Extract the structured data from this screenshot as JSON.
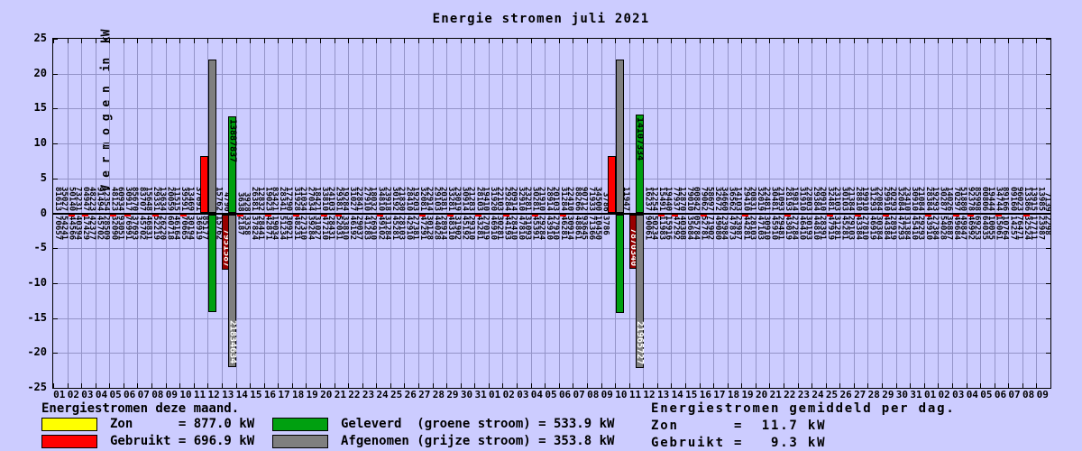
{
  "title": "Energie stromen juli 2021",
  "y_axis": {
    "label": "V e r m o g e n  in  kW",
    "ticks": [
      "25",
      "20",
      "15",
      "10",
      "5",
      "0",
      "-5",
      "-10",
      "-15",
      "-20",
      "-25"
    ]
  },
  "colors": {
    "background": "#ccccff",
    "grid": "#9494c8",
    "red": "#ff0000",
    "dark_red": "#990000",
    "green": "#00a010",
    "gray": "#7f7f7f",
    "yellow": "#ffff00",
    "text": "#000000"
  },
  "legend_left": {
    "header": "Energiestromen deze maand.",
    "items": [
      {
        "swatch": "yellow",
        "text": "Zon      = 877.0 kW"
      },
      {
        "swatch": "red",
        "text": "Gebruikt = 696.9 kW"
      },
      {
        "swatch": "green",
        "text": "Geleverd  (groene stroom) = 533.9 kW"
      },
      {
        "swatch": "gray",
        "text": "Afgenomen (grijze stroom) = 353.8 kW"
      }
    ]
  },
  "legend_right": {
    "header": "Energiestromen gemiddeld per dag.",
    "lines": [
      "Zon      =  11.7 kW",
      "Gebruikt =   9.3 kW"
    ]
  },
  "chart_data": {
    "type": "bar",
    "title": "Energie stromen juli 2021",
    "ylabel": "Vermogen in kW",
    "ylim": [
      -25,
      25
    ],
    "grid": true,
    "x_labels_cycles": "days 01-31, then 01-31, then 01-09 (71 columns)",
    "totals_kw": {
      "zon": 877.0,
      "gebruikt": 696.9,
      "geleverd": 533.9,
      "afgenomen": 353.8
    },
    "daily_average_kw": {
      "zon": 11.7,
      "gebruikt": 9.3
    },
    "bars": [
      {
        "cell": 11,
        "slot": "R",
        "dir": "up",
        "color": "red",
        "value": 8.2,
        "label": "",
        "label_color": ""
      },
      {
        "cell": 12,
        "slot": "L",
        "dir": "up",
        "color": "gray",
        "value": 21.97,
        "label": "",
        "label_color": ""
      },
      {
        "cell": 12,
        "slot": "L",
        "dir": "down",
        "color": "green",
        "value": 14.0,
        "label": "",
        "label_color": ""
      },
      {
        "cell": 13,
        "slot": "L",
        "dir": "down",
        "color": "dark_red",
        "value": 7.951587,
        "label": "7951587",
        "label_color": "#ffffff"
      },
      {
        "cell": 13,
        "slot": "R",
        "dir": "up",
        "color": "green",
        "value": 13.887837,
        "label": "13887837",
        "label_color": "#000000"
      },
      {
        "cell": 13,
        "slot": "R",
        "dir": "down",
        "color": "gray",
        "value": 21.834634,
        "label": "21834634",
        "label_color": "#ffffff"
      },
      {
        "cell": 40,
        "slot": "R",
        "dir": "up",
        "color": "red",
        "value": 8.2,
        "label": "",
        "label_color": ""
      },
      {
        "cell": 41,
        "slot": "L",
        "dir": "up",
        "color": "gray",
        "value": 21.97,
        "label": "",
        "label_color": ""
      },
      {
        "cell": 41,
        "slot": "L",
        "dir": "down",
        "color": "green",
        "value": 14.1,
        "label": "",
        "label_color": ""
      },
      {
        "cell": 42,
        "slot": "L",
        "dir": "down",
        "color": "dark_red",
        "value": 7.87034,
        "label": "7870340",
        "label_color": "#ffffff"
      },
      {
        "cell": 42,
        "slot": "R",
        "dir": "up",
        "color": "green",
        "value": 14.107334,
        "label": "14107334",
        "label_color": "#000000"
      },
      {
        "cell": 42,
        "slot": "R",
        "dir": "down",
        "color": "gray",
        "value": 21.965727,
        "label": "21965727",
        "label_color": "#ffffff"
      }
    ],
    "columns": [
      {
        "d": "01",
        "u": [
          "81613",
          "35027"
        ],
        "l": [
          "70657",
          "54241"
        ],
        "r": 0
      },
      {
        "d": "02",
        "u": [
          "50140",
          "73231"
        ],
        "l": [
          "44566",
          "40394"
        ],
        "r": 1
      },
      {
        "d": "03",
        "u": [
          "04947",
          "48223"
        ],
        "l": [
          "17429",
          "42377"
        ],
        "r": 1
      },
      {
        "d": "04",
        "u": [
          "91494",
          "12354"
        ],
        "l": [
          "45702",
          "28509"
        ],
        "r": 0
      },
      {
        "d": "05",
        "u": [
          "48123",
          "60934"
        ],
        "l": [
          "32090",
          "93051"
        ],
        "r": 1
      },
      {
        "d": "06",
        "u": [
          "30917",
          "85670"
        ],
        "l": [
          "76991",
          "37693"
        ],
        "r": 1
      },
      {
        "d": "07",
        "u": [
          "83707",
          "15648"
        ],
        "l": [
          "45702",
          "46831"
        ],
        "r": 0
      },
      {
        "d": "08",
        "u": [
          "29331",
          "13634"
        ],
        "l": [
          "52219",
          "26220"
        ],
        "r": 1
      },
      {
        "d": "09",
        "u": [
          "20059",
          "11515"
        ],
        "l": [
          "60718",
          "46164"
        ],
        "r": 0
      },
      {
        "d": "10",
        "u": [
          "39591",
          "13469"
        ],
        "l": [
          "70665",
          "30194"
        ],
        "r": 1
      },
      {
        "d": "11",
        "u": [
          "37691",
          "12609"
        ],
        "l": [
          "36919",
          "85177"
        ],
        "r": 0
      },
      {
        "d": "12",
        "u": [
          "",
          "15762"
        ],
        "l": [
          "",
          "15762"
        ],
        "r": 0
      },
      {
        "d": "13",
        "u": [
          "4790",
          ""
        ],
        "l": [
          "",
          ""
        ],
        "r": 0
      },
      {
        "d": "14",
        "u": [
          "3638",
          "3928"
        ],
        "l": [
          "2187",
          "3358"
        ],
        "r": 1
      },
      {
        "d": "15",
        "u": [
          "26381",
          "12832"
        ],
        "l": [
          "37824",
          "28441"
        ],
        "r": 0
      },
      {
        "d": "16",
        "u": [
          "19023",
          "83421"
        ],
        "l": [
          "42871",
          "19034"
        ],
        "r": 1
      },
      {
        "d": "17",
        "u": [
          "28341",
          "17290"
        ],
        "l": [
          "51234",
          "30921"
        ],
        "r": 0
      },
      {
        "d": "18",
        "u": [
          "31928",
          "21034"
        ],
        "l": [
          "48231",
          "27310"
        ],
        "r": 1
      },
      {
        "d": "19",
        "u": [
          "27034",
          "18421"
        ],
        "l": [
          "39284",
          "31027"
        ],
        "r": 0
      },
      {
        "d": "20",
        "u": [
          "33810",
          "24103"
        ],
        "l": [
          "47210",
          "28431"
        ],
        "r": 1
      },
      {
        "d": "21",
        "u": [
          "29381",
          "19284"
        ],
        "l": [
          "52031",
          "33810"
        ],
        "r": 1
      },
      {
        "d": "22",
        "u": [
          "31027",
          "22841"
        ],
        "l": [
          "46192",
          "29037"
        ],
        "r": 0
      },
      {
        "d": "23",
        "u": [
          "27910",
          "18032"
        ],
        "l": [
          "41283",
          "26910"
        ],
        "r": 0
      },
      {
        "d": "24",
        "u": [
          "34810",
          "23918"
        ],
        "l": [
          "49102",
          "31284"
        ],
        "r": 1
      },
      {
        "d": "25",
        "u": [
          "30192",
          "21830"
        ],
        "l": [
          "45281",
          "28103"
        ],
        "r": 0
      },
      {
        "d": "26",
        "u": [
          "28410",
          "19203"
        ],
        "l": [
          "42910",
          "27381"
        ],
        "r": 0
      },
      {
        "d": "27",
        "u": [
          "32081",
          "22914"
        ],
        "l": [
          "47291",
          "30128"
        ],
        "r": 1
      },
      {
        "d": "28",
        "u": [
          "29103",
          "20381"
        ],
        "l": [
          "44028",
          "28914"
        ],
        "r": 0
      },
      {
        "d": "29",
        "u": [
          "33281",
          "23019"
        ],
        "l": [
          "48310",
          "31902"
        ],
        "r": 1
      },
      {
        "d": "30",
        "u": [
          "30914",
          "21283"
        ],
        "l": [
          "45192",
          "29310"
        ],
        "r": 0
      },
      {
        "d": "31",
        "u": [
          "28103",
          "19410"
        ],
        "l": [
          "43281",
          "27019"
        ],
        "r": 1
      },
      {
        "d": "01",
        "u": [
          "31920",
          "22103"
        ],
        "l": [
          "46910",
          "30281"
        ],
        "r": 0
      },
      {
        "d": "02",
        "u": [
          "29284",
          "20914"
        ],
        "l": [
          "44193",
          "28410"
        ],
        "r": 1
      },
      {
        "d": "03",
        "u": [
          "32910",
          "23281"
        ],
        "l": [
          "47810",
          "31093"
        ],
        "r": 0
      },
      {
        "d": "04",
        "u": [
          "30281",
          "21910"
        ],
        "l": [
          "45391",
          "29284"
        ],
        "r": 1
      },
      {
        "d": "05",
        "u": [
          "28914",
          "20103"
        ],
        "l": [
          "43910",
          "27910"
        ],
        "r": 0
      },
      {
        "d": "06",
        "u": [
          "31284",
          "22410"
        ],
        "l": [
          "46281",
          "30914"
        ],
        "r": 1
      },
      {
        "d": "07",
        "u": [
          "88266",
          "90712"
        ],
        "l": [
          "48861",
          "93645"
        ],
        "r": 0
      },
      {
        "d": "08",
        "u": [
          "71933",
          "34500"
        ],
        "l": [
          "71366",
          "10450"
        ],
        "r": 0
      },
      {
        "d": "09",
        "u": [
          "3786",
          "7100"
        ],
        "l": [
          "3786",
          ""
        ],
        "r": 0
      },
      {
        "d": "10",
        "u": [
          "",
          "11947"
        ],
        "l": [
          "",
          ""
        ],
        "r": 0
      },
      {
        "d": "11",
        "u": [
          "",
          ""
        ],
        "l": [
          "",
          ""
        ],
        "r": 0
      },
      {
        "d": "12",
        "u": [
          "16237",
          "12254"
        ],
        "l": [
          "90061",
          "50234"
        ],
        "r": 0
      },
      {
        "d": "13",
        "u": [
          "15491",
          "19440"
        ],
        "l": [
          "11983",
          "15916"
        ],
        "r": 1
      },
      {
        "d": "14",
        "u": [
          "77937",
          "12870"
        ],
        "l": [
          "47292",
          "40308"
        ],
        "r": 1
      },
      {
        "d": "15",
        "u": [
          "79010",
          "00842"
        ],
        "l": [
          "35684",
          "05784"
        ],
        "r": 0
      },
      {
        "d": "16",
        "u": [
          "79062",
          "58697"
        ],
        "l": [
          "52781",
          "71902"
        ],
        "r": 1
      },
      {
        "d": "17",
        "u": [
          "32672",
          "34660"
        ],
        "l": [
          "49080",
          "23984"
        ],
        "r": 0
      },
      {
        "d": "18",
        "u": [
          "36562",
          "14103"
        ],
        "l": [
          "47873",
          "23987"
        ],
        "r": 0
      },
      {
        "d": "19",
        "u": [
          "29410",
          "20831"
        ],
        "l": [
          "44281",
          "28103"
        ],
        "r": 1
      },
      {
        "d": "20",
        "u": [
          "32019",
          "22481"
        ],
        "l": [
          "47103",
          "30910"
        ],
        "r": 0
      },
      {
        "d": "21",
        "u": [
          "30481",
          "21093"
        ],
        "l": [
          "45910",
          "29481"
        ],
        "r": 0
      },
      {
        "d": "22",
        "u": [
          "28193",
          "19814"
        ],
        "l": [
          "43019",
          "27284"
        ],
        "r": 1
      },
      {
        "d": "23",
        "u": [
          "31910",
          "22803"
        ],
        "l": [
          "46410",
          "30193"
        ],
        "r": 0
      },
      {
        "d": "24",
        "u": [
          "29384",
          "20910"
        ],
        "l": [
          "44810",
          "28391"
        ],
        "r": 0
      },
      {
        "d": "25",
        "u": [
          "32481",
          "23103"
        ],
        "l": [
          "47919",
          "31281"
        ],
        "r": 1
      },
      {
        "d": "26",
        "u": [
          "30103",
          "21384"
        ],
        "l": [
          "45281",
          "29103"
        ],
        "r": 0
      },
      {
        "d": "27",
        "u": [
          "28810",
          "19910"
        ],
        "l": [
          "43384",
          "27810"
        ],
        "r": 1
      },
      {
        "d": "28",
        "u": [
          "31293",
          "22084"
        ],
        "l": [
          "46919",
          "30384"
        ],
        "r": 0
      },
      {
        "d": "29",
        "u": [
          "29910",
          "20293"
        ],
        "l": [
          "44384",
          "28919"
        ],
        "r": 1
      },
      {
        "d": "30",
        "u": [
          "32084",
          "23410"
        ],
        "l": [
          "47293",
          "31384"
        ],
        "r": 0
      },
      {
        "d": "31",
        "u": [
          "30910",
          "21084"
        ],
        "l": [
          "45410",
          "29293"
        ],
        "r": 0
      },
      {
        "d": "01",
        "u": [
          "28384",
          "19293"
        ],
        "l": [
          "43910",
          "27384"
        ],
        "r": 1
      },
      {
        "d": "02",
        "u": [
          "30287",
          "14026"
        ],
        "l": [
          "54028",
          "36887"
        ],
        "r": 0
      },
      {
        "d": "03",
        "u": [
          "70297",
          "51880"
        ],
        "l": [
          "49684",
          "49847"
        ],
        "r": 1
      },
      {
        "d": "04",
        "u": [
          "92378",
          "85998"
        ],
        "l": [
          "46992",
          "69253"
        ],
        "r": 1
      },
      {
        "d": "05",
        "u": [
          "00806",
          "19444"
        ],
        "l": [
          "64035",
          "10055"
        ],
        "r": 0
      },
      {
        "d": "06",
        "u": [
          "34744",
          "89166"
        ],
        "l": [
          "15061",
          "10764"
        ],
        "r": 1
      },
      {
        "d": "07",
        "u": [
          "09160",
          "96023"
        ],
        "l": [
          "14257",
          "76471"
        ],
        "r": 0
      },
      {
        "d": "08",
        "u": [
          "13386",
          "13915"
        ],
        "l": [
          "32524",
          "17711"
        ],
        "r": 1
      },
      {
        "d": "09",
        "u": [
          "13985",
          "7139"
        ],
        "l": [
          "23987",
          "2298"
        ],
        "r": 0
      }
    ]
  }
}
